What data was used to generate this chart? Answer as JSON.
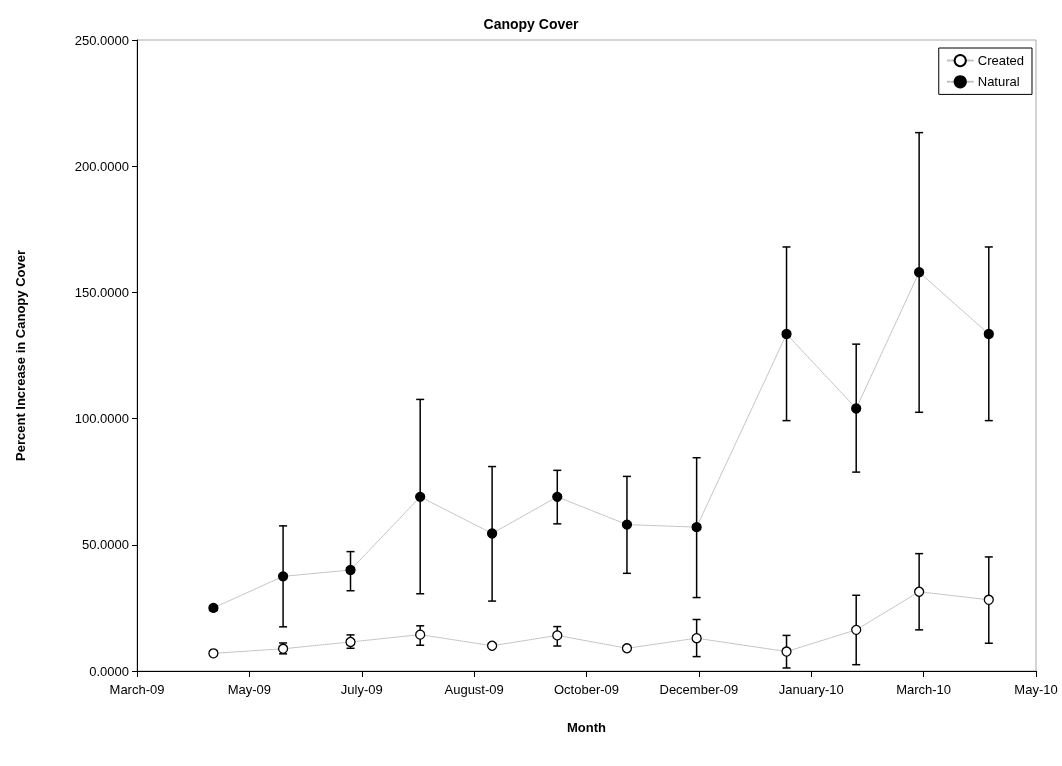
{
  "chart_data": {
    "type": "line",
    "title": "Canopy Cover",
    "xlabel": "Month",
    "ylabel": "Percent Increase in Canopy Cover",
    "x": [
      "2009-04-30",
      "2009-05-31",
      "2009-06-30",
      "2009-07-31",
      "2009-09-01",
      "2009-09-30",
      "2009-10-31",
      "2009-12-01",
      "2010-01-10",
      "2010-02-10",
      "2010-03-10",
      "2010-04-10"
    ],
    "series": [
      {
        "name": "Created",
        "color": "#ffffff",
        "values": [
          7,
          8.8,
          11.5,
          14.4,
          10,
          14.1,
          9,
          13,
          7.7,
          16.3,
          31.4,
          28.2
        ],
        "errors": [
          null,
          [
            6.8,
            11.1
          ],
          [
            9,
            14.3
          ],
          [
            10.2,
            17.9
          ],
          null,
          [
            9.9,
            17.6
          ],
          null,
          [
            5.7,
            20.4
          ],
          [
            1.2,
            14.1
          ],
          [
            2.5,
            30
          ],
          [
            16.3,
            46.5
          ],
          [
            11,
            45.2
          ]
        ]
      },
      {
        "name": "Natural",
        "color": "#000000",
        "values": [
          25,
          37.5,
          40,
          69,
          54.5,
          69,
          58,
          57,
          133.5,
          104,
          158,
          133.5
        ],
        "errors": [
          null,
          [
            17.5,
            57.5
          ],
          [
            31.8,
            47.3
          ],
          [
            30.6,
            107.6
          ],
          [
            27.7,
            81
          ],
          [
            58.3,
            79.5
          ],
          [
            38.7,
            77.1
          ],
          [
            29.1,
            84.5
          ],
          [
            99.2,
            168
          ],
          [
            78.8,
            129.5
          ],
          [
            102.5,
            213.3
          ],
          [
            99.2,
            168
          ]
        ]
      }
    ],
    "xlim": [
      "2009-03-27",
      "2010-05-01"
    ],
    "xticks": [
      {
        "value": "2009-03-27",
        "label": "March-09"
      },
      {
        "value": "2009-05-16",
        "label": "May-09"
      },
      {
        "value": "2009-07-05",
        "label": "July-09"
      },
      {
        "value": "2009-08-24",
        "label": "August-09"
      },
      {
        "value": "2009-10-13",
        "label": "October-09"
      },
      {
        "value": "2009-12-02",
        "label": "December-09"
      },
      {
        "value": "2010-01-21",
        "label": "January-10"
      },
      {
        "value": "2010-03-12",
        "label": "March-10"
      },
      {
        "value": "2010-05-01",
        "label": "May-10"
      }
    ],
    "ylim": [
      0,
      250
    ],
    "yticks": [
      {
        "value": 0,
        "label": "0.0000"
      },
      {
        "value": 50,
        "label": "50.0000"
      },
      {
        "value": 100,
        "label": "100.0000"
      },
      {
        "value": 150,
        "label": "150.0000"
      },
      {
        "value": 200,
        "label": "200.0000"
      },
      {
        "value": 250,
        "label": "250.0000"
      }
    ],
    "grid": false,
    "legend": "top right",
    "marker": "circle",
    "line_style": "dotted"
  }
}
